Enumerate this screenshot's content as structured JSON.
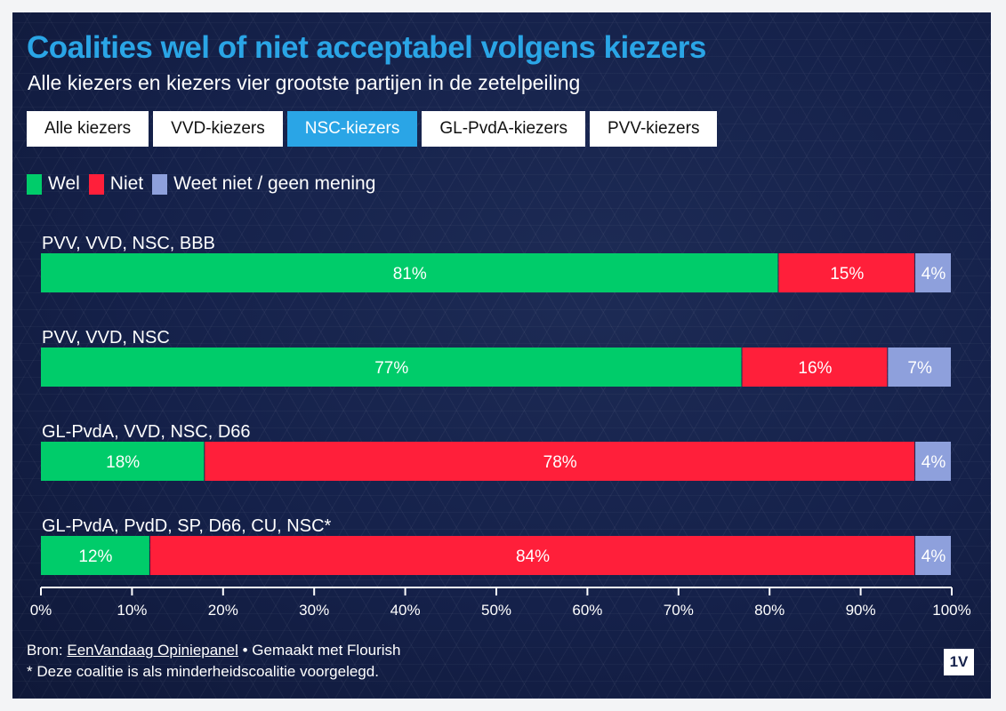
{
  "header": {
    "title": "Coalities wel of niet acceptabel volgens kiezers",
    "subtitle": "Alle kiezers en kiezers vier grootste partijen in de zetelpeiling"
  },
  "tabs": [
    {
      "label": "Alle kiezers",
      "active": false
    },
    {
      "label": "VVD-kiezers",
      "active": false
    },
    {
      "label": "NSC-kiezers",
      "active": true
    },
    {
      "label": "GL-PvdA-kiezers",
      "active": false
    },
    {
      "label": "PVV-kiezers",
      "active": false
    }
  ],
  "colors": {
    "wel": "#00cc6a",
    "niet": "#ff1f3a",
    "weet_niet": "#8ea0dc",
    "accent": "#2aa5e6",
    "background": "#15214a"
  },
  "chart_data": {
    "type": "bar",
    "orientation": "horizontal",
    "stacked": true,
    "categories": [
      "PVV, VVD, NSC, BBB",
      "PVV, VVD, NSC",
      "GL-PvdA, VVD, NSC, D66",
      "GL-PvdA, PvdD, SP, D66, CU, NSC*"
    ],
    "series": [
      {
        "name": "Wel",
        "color": "#00cc6a",
        "values": [
          81,
          77,
          18,
          12
        ]
      },
      {
        "name": "Niet",
        "color": "#ff1f3a",
        "values": [
          15,
          16,
          78,
          84
        ]
      },
      {
        "name": "Weet niet / geen mening",
        "color": "#8ea0dc",
        "values": [
          4,
          7,
          4,
          4
        ]
      }
    ],
    "value_suffix": "%",
    "xlim": [
      0,
      100
    ],
    "xticks": [
      "0%",
      "10%",
      "20%",
      "30%",
      "40%",
      "50%",
      "60%",
      "70%",
      "80%",
      "90%",
      "100%"
    ],
    "legend_position": "top-left",
    "grid": false
  },
  "footer": {
    "source_prefix": "Bron: ",
    "source_link": "EenVandaag Opiniepanel",
    "made_with": " • Gemaakt met Flourish",
    "note": "* Deze coalitie is als minderheidscoalitie voorgelegd."
  },
  "logo": {
    "text": "1V"
  }
}
